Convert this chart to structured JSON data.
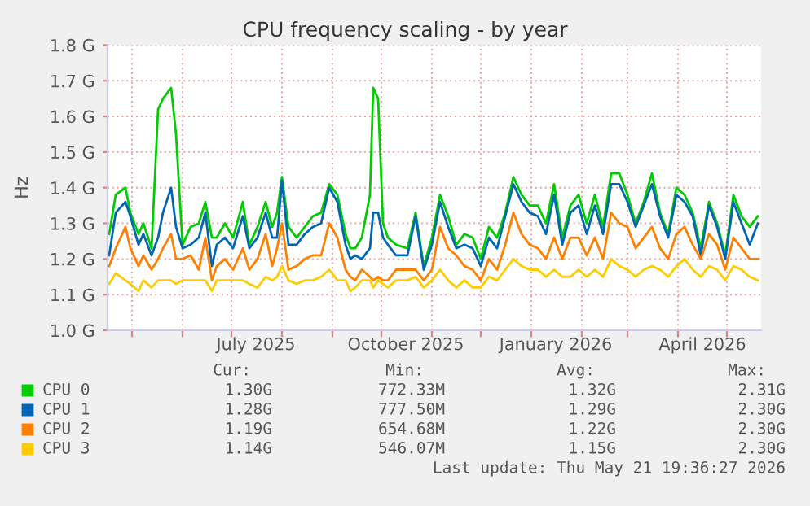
{
  "chart_data": {
    "type": "line",
    "title": "CPU frequency scaling - by year",
    "ylabel": "Hz",
    "x": [
      "2025-04-17",
      "2025-04-21",
      "2025-04-27",
      "2025-04-30",
      "2025-05-05",
      "2025-05-08",
      "2025-05-13",
      "2025-05-17",
      "2025-05-20",
      "2025-05-25",
      "2025-05-28",
      "2025-06-01",
      "2025-06-06",
      "2025-06-11",
      "2025-06-15",
      "2025-06-19",
      "2025-06-22",
      "2025-06-27",
      "2025-07-02",
      "2025-07-08",
      "2025-07-12",
      "2025-07-17",
      "2025-07-22",
      "2025-07-26",
      "2025-07-29",
      "2025-08-01",
      "2025-08-05",
      "2025-08-10",
      "2025-08-15",
      "2025-08-20",
      "2025-08-25",
      "2025-08-30",
      "2025-09-04",
      "2025-09-09",
      "2025-09-12",
      "2025-09-15",
      "2025-09-19",
      "2025-09-24",
      "2025-09-26",
      "2025-09-29",
      "2025-10-02",
      "2025-10-05",
      "2025-10-10",
      "2025-10-17",
      "2025-10-22",
      "2025-10-27",
      "2025-11-01",
      "2025-11-06",
      "2025-11-11",
      "2025-11-16",
      "2025-11-21",
      "2025-11-26",
      "2025-12-01",
      "2025-12-06",
      "2025-12-11",
      "2025-12-16",
      "2025-12-21",
      "2025-12-26",
      "2025-12-31",
      "2026-01-05",
      "2026-01-10",
      "2026-01-15",
      "2026-01-20",
      "2026-01-25",
      "2026-01-30",
      "2026-02-04",
      "2026-02-09",
      "2026-02-14",
      "2026-02-19",
      "2026-02-24",
      "2026-03-01",
      "2026-03-06",
      "2026-03-11",
      "2026-03-16",
      "2026-03-21",
      "2026-03-26",
      "2026-03-31",
      "2026-04-05",
      "2026-04-10",
      "2026-04-15",
      "2026-04-20",
      "2026-04-25",
      "2026-04-30",
      "2026-05-05",
      "2026-05-10",
      "2026-05-15",
      "2026-05-20"
    ],
    "series": [
      {
        "name": "CPU 0",
        "color": "#00cc00",
        "values": [
          1.27,
          1.38,
          1.4,
          1.33,
          1.27,
          1.3,
          1.23,
          1.62,
          1.65,
          1.68,
          1.55,
          1.24,
          1.29,
          1.3,
          1.36,
          1.26,
          1.26,
          1.3,
          1.26,
          1.36,
          1.24,
          1.29,
          1.36,
          1.29,
          1.33,
          1.43,
          1.29,
          1.26,
          1.29,
          1.32,
          1.33,
          1.41,
          1.38,
          1.27,
          1.23,
          1.23,
          1.26,
          1.38,
          1.68,
          1.65,
          1.3,
          1.26,
          1.24,
          1.23,
          1.33,
          1.18,
          1.26,
          1.38,
          1.32,
          1.24,
          1.27,
          1.26,
          1.2,
          1.29,
          1.26,
          1.33,
          1.43,
          1.38,
          1.35,
          1.35,
          1.3,
          1.41,
          1.26,
          1.35,
          1.38,
          1.3,
          1.38,
          1.29,
          1.44,
          1.44,
          1.38,
          1.3,
          1.36,
          1.44,
          1.33,
          1.27,
          1.4,
          1.38,
          1.33,
          1.23,
          1.36,
          1.3,
          1.21,
          1.38,
          1.32,
          1.29,
          1.32
        ]
      },
      {
        "name": "CPU 1",
        "color": "#0066b3",
        "values": [
          1.21,
          1.33,
          1.36,
          1.32,
          1.24,
          1.27,
          1.21,
          1.26,
          1.33,
          1.4,
          1.29,
          1.23,
          1.24,
          1.26,
          1.33,
          1.18,
          1.24,
          1.26,
          1.23,
          1.32,
          1.23,
          1.26,
          1.33,
          1.26,
          1.26,
          1.42,
          1.24,
          1.24,
          1.27,
          1.29,
          1.3,
          1.4,
          1.36,
          1.24,
          1.2,
          1.21,
          1.2,
          1.23,
          1.33,
          1.33,
          1.26,
          1.24,
          1.21,
          1.21,
          1.32,
          1.17,
          1.24,
          1.36,
          1.29,
          1.23,
          1.24,
          1.23,
          1.18,
          1.26,
          1.23,
          1.32,
          1.41,
          1.36,
          1.33,
          1.32,
          1.27,
          1.38,
          1.24,
          1.33,
          1.35,
          1.27,
          1.35,
          1.27,
          1.41,
          1.41,
          1.36,
          1.29,
          1.35,
          1.41,
          1.32,
          1.26,
          1.38,
          1.36,
          1.32,
          1.21,
          1.35,
          1.29,
          1.2,
          1.36,
          1.3,
          1.24,
          1.3
        ]
      },
      {
        "name": "CPU 2",
        "color": "#ff8000",
        "values": [
          1.18,
          1.23,
          1.29,
          1.23,
          1.18,
          1.21,
          1.17,
          1.2,
          1.23,
          1.27,
          1.2,
          1.2,
          1.21,
          1.17,
          1.26,
          1.14,
          1.18,
          1.2,
          1.17,
          1.23,
          1.17,
          1.2,
          1.27,
          1.18,
          1.23,
          1.3,
          1.17,
          1.18,
          1.2,
          1.21,
          1.21,
          1.3,
          1.26,
          1.17,
          1.15,
          1.14,
          1.17,
          1.15,
          1.14,
          1.15,
          1.14,
          1.14,
          1.17,
          1.17,
          1.17,
          1.14,
          1.17,
          1.29,
          1.23,
          1.21,
          1.18,
          1.17,
          1.14,
          1.2,
          1.17,
          1.24,
          1.33,
          1.27,
          1.24,
          1.23,
          1.2,
          1.26,
          1.2,
          1.26,
          1.26,
          1.21,
          1.26,
          1.2,
          1.33,
          1.3,
          1.29,
          1.23,
          1.26,
          1.29,
          1.23,
          1.2,
          1.27,
          1.29,
          1.24,
          1.2,
          1.27,
          1.24,
          1.17,
          1.26,
          1.23,
          1.2,
          1.2
        ]
      },
      {
        "name": "CPU 3",
        "color": "#ffcc00",
        "values": [
          1.13,
          1.16,
          1.14,
          1.13,
          1.11,
          1.14,
          1.12,
          1.14,
          1.14,
          1.14,
          1.13,
          1.14,
          1.14,
          1.14,
          1.14,
          1.11,
          1.14,
          1.14,
          1.14,
          1.14,
          1.13,
          1.12,
          1.15,
          1.14,
          1.15,
          1.18,
          1.14,
          1.13,
          1.14,
          1.14,
          1.15,
          1.17,
          1.14,
          1.14,
          1.11,
          1.12,
          1.14,
          1.14,
          1.12,
          1.14,
          1.13,
          1.12,
          1.14,
          1.14,
          1.15,
          1.12,
          1.14,
          1.17,
          1.14,
          1.12,
          1.14,
          1.12,
          1.12,
          1.15,
          1.14,
          1.17,
          1.2,
          1.18,
          1.17,
          1.17,
          1.15,
          1.17,
          1.15,
          1.15,
          1.17,
          1.15,
          1.17,
          1.15,
          1.2,
          1.18,
          1.17,
          1.15,
          1.17,
          1.18,
          1.17,
          1.15,
          1.18,
          1.2,
          1.17,
          1.15,
          1.18,
          1.17,
          1.14,
          1.18,
          1.17,
          1.15,
          1.14
        ]
      }
    ],
    "xlim": [
      "2025-04-16",
      "2026-05-22"
    ],
    "xticks": [
      {
        "value": "2025-05-01",
        "label": null
      },
      {
        "value": "2025-06-01",
        "label": null
      },
      {
        "value": "2025-07-01",
        "label": null
      },
      {
        "value": "2025-07-16",
        "label": "July 2025"
      },
      {
        "value": "2025-08-01",
        "label": null
      },
      {
        "value": "2025-09-01",
        "label": null
      },
      {
        "value": "2025-10-01",
        "label": null
      },
      {
        "value": "2025-10-16",
        "label": "October 2025"
      },
      {
        "value": "2025-11-01",
        "label": null
      },
      {
        "value": "2025-12-01",
        "label": null
      },
      {
        "value": "2026-01-01",
        "label": null
      },
      {
        "value": "2026-01-16",
        "label": "January 2026"
      },
      {
        "value": "2026-02-01",
        "label": null
      },
      {
        "value": "2026-03-01",
        "label": null
      },
      {
        "value": "2026-04-01",
        "label": null
      },
      {
        "value": "2026-04-16",
        "label": "April 2026"
      },
      {
        "value": "2026-05-01",
        "label": null
      }
    ],
    "ylim": [
      1.0,
      1.8
    ],
    "yticks": [
      {
        "value": 1.0,
        "label": "1.0 G"
      },
      {
        "value": 1.1,
        "label": "1.1 G"
      },
      {
        "value": 1.2,
        "label": "1.2 G"
      },
      {
        "value": 1.3,
        "label": "1.3 G"
      },
      {
        "value": 1.4,
        "label": "1.4 G"
      },
      {
        "value": 1.5,
        "label": "1.5 G"
      },
      {
        "value": 1.6,
        "label": "1.6 G"
      },
      {
        "value": 1.7,
        "label": "1.7 G"
      },
      {
        "value": 1.8,
        "label": "1.8 G"
      }
    ],
    "grid": true,
    "legend": "bottom",
    "annotations": [
      "Cur:",
      "Min:",
      "Avg:",
      "Max:",
      "1.30G",
      "772.33M",
      "1.32G",
      "2.31G",
      "1.28G",
      "777.50M",
      "1.29G",
      "2.30G",
      "1.19G",
      "654.68M",
      "1.22G",
      "2.30G",
      "1.14G",
      "546.07M",
      "1.15G",
      "2.30G",
      "Last update: Thu May 21 19:36:27 2026"
    ]
  }
}
